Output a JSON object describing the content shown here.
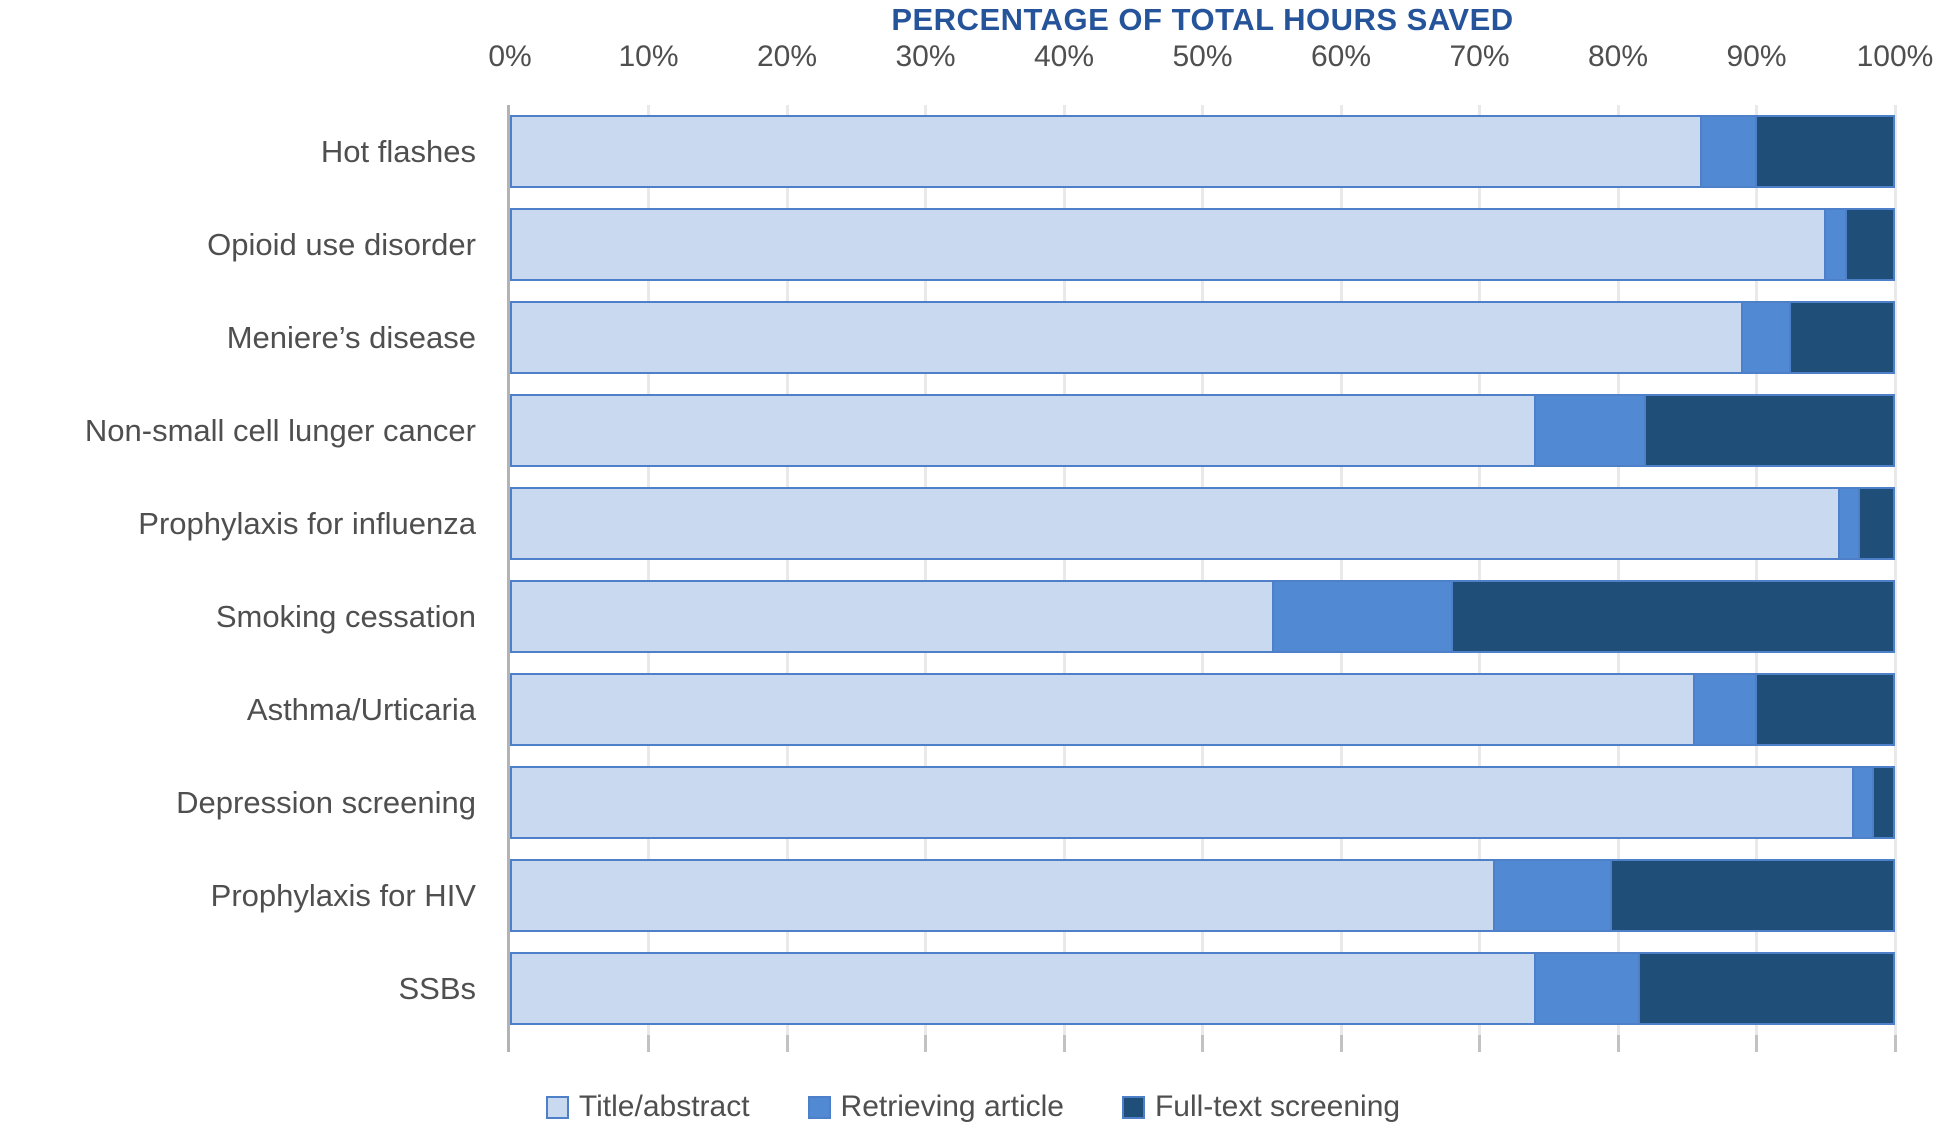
{
  "chart_data": {
    "type": "bar",
    "orientation": "horizontal",
    "stacked": true,
    "title": "PERCENTAGE OF TOTAL HOURS SAVED",
    "xlabel": "",
    "ylabel": "",
    "xlim": [
      0,
      100
    ],
    "x_ticks": [
      "0%",
      "10%",
      "20%",
      "30%",
      "40%",
      "50%",
      "60%",
      "70%",
      "80%",
      "90%",
      "100%"
    ],
    "grid": true,
    "legend_position": "bottom",
    "categories": [
      "Hot flashes",
      "Opioid use disorder",
      "Meniere’s disease",
      "Non-small cell lunger cancer",
      "Prophylaxis for influenza",
      "Smoking cessation",
      "Asthma/Urticaria",
      "Depression screening",
      "Prophylaxis for HIV",
      "SSBs"
    ],
    "series": [
      {
        "name": "Title/abstract",
        "color": "#c9d9f0",
        "values": [
          86,
          95,
          89,
          74,
          96,
          55,
          85.5,
          97,
          71,
          74
        ]
      },
      {
        "name": "Retrieving article",
        "color": "#5289d3",
        "values": [
          4,
          1.5,
          3.5,
          8,
          1.5,
          13,
          4.5,
          1.5,
          8.5,
          7.5
        ]
      },
      {
        "name": "Full-text screening",
        "color": "#1f4e79",
        "values": [
          10,
          3.5,
          7.5,
          18,
          2.5,
          32,
          10,
          1.5,
          20.5,
          18.5
        ]
      }
    ]
  },
  "colors": {
    "title": "#26549b",
    "axis_text": "#4f4f4f",
    "bar_border": "#4d80c9",
    "gridline": "#e9e9e9",
    "axis_line": "#b3b3b3",
    "background": "#ffffff"
  }
}
